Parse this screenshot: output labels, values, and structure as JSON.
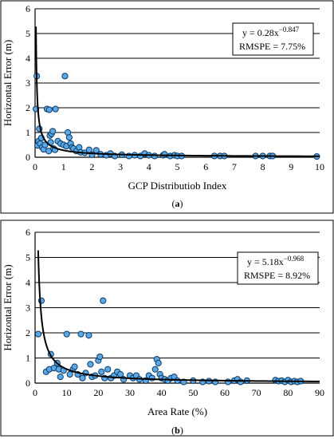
{
  "chart_data": [
    {
      "type": "scatter",
      "panel_label": "(a)",
      "xlabel": "GCP Distributiob Index",
      "ylabel": "Horizontal Error (m)",
      "xlim": [
        0,
        10
      ],
      "ylim": [
        0,
        6
      ],
      "xticks": [
        0,
        1,
        2,
        3,
        4,
        5,
        6,
        7,
        8,
        9,
        10
      ],
      "yticks": [
        0,
        1,
        2,
        3,
        4,
        5,
        6
      ],
      "grid": "horizontal",
      "annotation": {
        "line1_base": "y = 0.28x",
        "line1_exp": "−0.847",
        "line2": "RMSPE = 7.75%"
      },
      "fit": {
        "type": "power",
        "a": 0.28,
        "b": -0.847
      },
      "points": [
        [
          0.03,
          1.95
        ],
        [
          0.06,
          3.28
        ],
        [
          0.09,
          0.48
        ],
        [
          0.12,
          0.65
        ],
        [
          0.15,
          1.15
        ],
        [
          0.18,
          0.55
        ],
        [
          0.22,
          0.78
        ],
        [
          0.25,
          0.4
        ],
        [
          0.3,
          0.32
        ],
        [
          0.35,
          0.5
        ],
        [
          0.42,
          1.95
        ],
        [
          0.48,
          0.25
        ],
        [
          0.5,
          1.92
        ],
        [
          0.52,
          0.88
        ],
        [
          0.55,
          0.6
        ],
        [
          0.58,
          0.95
        ],
        [
          0.62,
          1.05
        ],
        [
          0.65,
          0.35
        ],
        [
          0.7,
          0.3
        ],
        [
          0.72,
          1.95
        ],
        [
          0.8,
          0.65
        ],
        [
          0.9,
          0.55
        ],
        [
          1.0,
          0.5
        ],
        [
          1.05,
          3.28
        ],
        [
          1.1,
          0.45
        ],
        [
          1.15,
          1.0
        ],
        [
          1.2,
          0.8
        ],
        [
          1.25,
          0.55
        ],
        [
          1.3,
          0.4
        ],
        [
          1.35,
          0.35
        ],
        [
          1.45,
          0.25
        ],
        [
          1.55,
          0.4
        ],
        [
          1.6,
          0.2
        ],
        [
          1.75,
          0.18
        ],
        [
          1.9,
          0.3
        ],
        [
          2.0,
          0.1
        ],
        [
          2.15,
          0.28
        ],
        [
          2.3,
          0.12
        ],
        [
          2.5,
          0.08
        ],
        [
          2.65,
          0.15
        ],
        [
          2.8,
          0.05
        ],
        [
          3.05,
          0.1
        ],
        [
          3.3,
          0.05
        ],
        [
          3.5,
          0.08
        ],
        [
          3.7,
          0.05
        ],
        [
          3.85,
          0.15
        ],
        [
          4.0,
          0.08
        ],
        [
          4.2,
          0.05
        ],
        [
          4.5,
          0.08
        ],
        [
          4.55,
          0.12
        ],
        [
          4.75,
          0.05
        ],
        [
          4.9,
          0.08
        ],
        [
          5.0,
          0.05
        ],
        [
          5.15,
          0.05
        ],
        [
          6.3,
          0.05
        ],
        [
          6.5,
          0.05
        ],
        [
          6.65,
          0.05
        ],
        [
          7.75,
          0.05
        ],
        [
          8.0,
          0.05
        ],
        [
          8.25,
          0.05
        ],
        [
          8.35,
          0.05
        ],
        [
          9.9,
          0.03
        ]
      ]
    },
    {
      "type": "scatter",
      "panel_label": "(b)",
      "xlabel": "Area Rate (%)",
      "ylabel": "Horizontal Error (m)",
      "xlim": [
        0,
        90
      ],
      "ylim": [
        0,
        6
      ],
      "xticks": [
        0,
        10,
        20,
        30,
        40,
        50,
        60,
        70,
        80,
        90
      ],
      "yticks": [
        0,
        1,
        2,
        3,
        4,
        5,
        6
      ],
      "grid": "horizontal",
      "annotation": {
        "line1_base": "y = 5.18x",
        "line1_exp": "−0.968",
        "line2": "RMSPE = 8.92%"
      },
      "fit": {
        "type": "power",
        "a": 5.18,
        "b": -0.968
      },
      "points": [
        [
          1.0,
          1.95
        ],
        [
          2.0,
          3.28
        ],
        [
          3.5,
          0.45
        ],
        [
          4.5,
          0.55
        ],
        [
          5.0,
          1.15
        ],
        [
          6.0,
          0.6
        ],
        [
          7.0,
          0.8
        ],
        [
          7.5,
          0.55
        ],
        [
          8.0,
          0.25
        ],
        [
          9.0,
          0.5
        ],
        [
          10.0,
          1.95
        ],
        [
          11.0,
          0.35
        ],
        [
          12.0,
          0.55
        ],
        [
          12.5,
          0.65
        ],
        [
          13.5,
          0.35
        ],
        [
          14.5,
          1.95
        ],
        [
          15.0,
          0.2
        ],
        [
          16.0,
          0.4
        ],
        [
          17.0,
          1.9
        ],
        [
          17.5,
          0.75
        ],
        [
          18.0,
          0.25
        ],
        [
          19.0,
          0.3
        ],
        [
          20.0,
          0.9
        ],
        [
          20.5,
          1.05
        ],
        [
          21.0,
          0.45
        ],
        [
          21.5,
          3.28
        ],
        [
          22.0,
          0.2
        ],
        [
          23.0,
          0.55
        ],
        [
          24.0,
          0.2
        ],
        [
          25.0,
          0.3
        ],
        [
          26.0,
          0.45
        ],
        [
          27.0,
          0.35
        ],
        [
          28.0,
          0.15
        ],
        [
          30.0,
          0.3
        ],
        [
          31.0,
          0.2
        ],
        [
          32.0,
          0.3
        ],
        [
          33.0,
          0.15
        ],
        [
          35.0,
          0.1
        ],
        [
          36.0,
          0.3
        ],
        [
          37.0,
          0.2
        ],
        [
          38.0,
          0.55
        ],
        [
          38.5,
          0.95
        ],
        [
          39.0,
          0.8
        ],
        [
          39.5,
          0.35
        ],
        [
          40.0,
          0.2
        ],
        [
          41.0,
          0.15
        ],
        [
          42.0,
          0.1
        ],
        [
          43.0,
          0.2
        ],
        [
          44.0,
          0.25
        ],
        [
          45.0,
          0.1
        ],
        [
          47.0,
          0.05
        ],
        [
          50.0,
          0.1
        ],
        [
          53.0,
          0.05
        ],
        [
          55.0,
          0.08
        ],
        [
          57.0,
          0.05
        ],
        [
          61.0,
          0.05
        ],
        [
          63.0,
          0.1
        ],
        [
          64.0,
          0.15
        ],
        [
          65.0,
          0.05
        ],
        [
          67.0,
          0.1
        ],
        [
          76.0,
          0.12
        ],
        [
          77.0,
          0.08
        ],
        [
          78.0,
          0.1
        ],
        [
          79.0,
          0.05
        ],
        [
          80.0,
          0.12
        ],
        [
          81.0,
          0.05
        ],
        [
          82.0,
          0.08
        ],
        [
          83.0,
          0.05
        ],
        [
          84.0,
          0.08
        ]
      ]
    }
  ]
}
